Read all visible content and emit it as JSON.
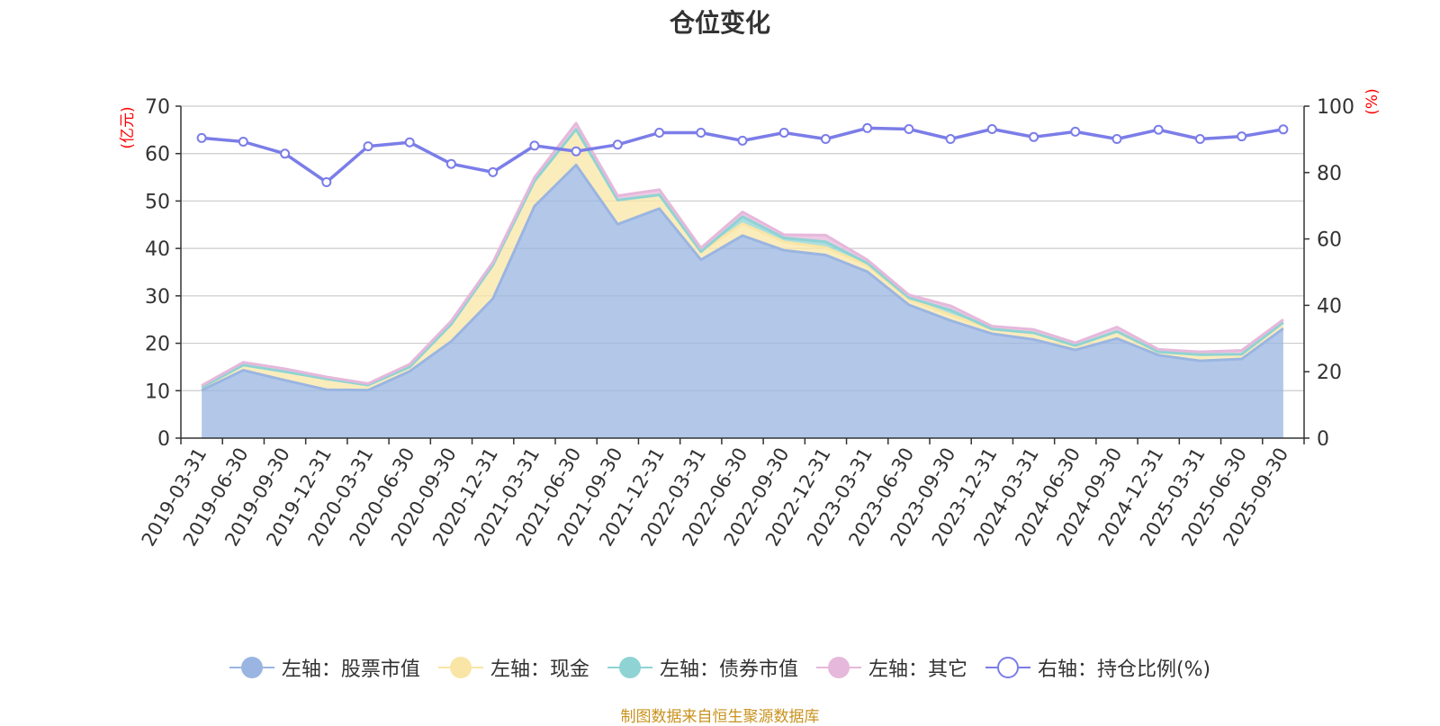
{
  "chart_data": {
    "type": "area",
    "title": "仓位变化",
    "left_axis_unit": "(亿元)",
    "right_axis_unit": "(%)",
    "left_ylim": [
      0,
      70
    ],
    "left_ticks": [
      0,
      10,
      20,
      30,
      40,
      50,
      60,
      70
    ],
    "right_ylim": [
      0,
      100
    ],
    "right_ticks": [
      0,
      20,
      40,
      60,
      80,
      100
    ],
    "grid": true,
    "stacked": true,
    "categories": [
      "2019-03-31",
      "2019-06-30",
      "2019-09-30",
      "2019-12-31",
      "2020-03-31",
      "2020-06-30",
      "2020-09-30",
      "2020-12-31",
      "2021-03-31",
      "2021-06-30",
      "2021-09-30",
      "2021-12-31",
      "2022-03-31",
      "2022-06-30",
      "2022-09-30",
      "2022-12-31",
      "2023-03-31",
      "2023-06-30",
      "2023-09-30",
      "2023-12-31",
      "2024-03-31",
      "2024-06-30",
      "2024-09-30",
      "2024-12-31",
      "2025-03-31",
      "2025-06-30",
      "2025-09-30"
    ],
    "series": [
      {
        "name": "左轴：股票市值",
        "axis": "left",
        "color": "#9ab5e1",
        "values": [
          10.1,
          14.3,
          12.2,
          10.2,
          10.1,
          14.1,
          20.4,
          29.4,
          48.9,
          57.6,
          45.1,
          48.4,
          37.6,
          42.7,
          39.6,
          38.6,
          35.1,
          28.1,
          24.8,
          22.0,
          20.8,
          18.6,
          21.0,
          17.5,
          16.3,
          16.7,
          23.1
        ]
      },
      {
        "name": "左轴：现金",
        "axis": "left",
        "color": "#f9e5a5",
        "values": [
          0.6,
          1.1,
          1.8,
          2.3,
          1.1,
          0.9,
          3.6,
          7.1,
          5.3,
          7.5,
          5.1,
          2.9,
          1.7,
          2.5,
          1.8,
          1.6,
          1.4,
          1.2,
          1.2,
          1.0,
          1.4,
          0.9,
          1.5,
          0.7,
          1.3,
          1.0,
          1.3
        ]
      },
      {
        "name": "左轴：债券市值",
        "axis": "left",
        "color": "#8fd3d4",
        "values": [
          0,
          0,
          0,
          0,
          0,
          0,
          0,
          0,
          0,
          0,
          0,
          0,
          0,
          1.5,
          0.8,
          1.2,
          0.4,
          0.3,
          1.0,
          0,
          0,
          0,
          0,
          0,
          0,
          0,
          0
        ]
      },
      {
        "name": "左轴：其它",
        "axis": "left",
        "color": "#e6b8db",
        "values": [
          0.4,
          0.6,
          0.6,
          0.4,
          0.3,
          0.6,
          0.7,
          0.6,
          0.8,
          1.3,
          0.9,
          1.1,
          0.8,
          1.0,
          0.7,
          1.4,
          0.7,
          0.6,
          0.9,
          0.6,
          0.7,
          0.6,
          0.9,
          0.5,
          0.6,
          0.8,
          0.6
        ]
      },
      {
        "name": "右轴：持仓比例(%)",
        "axis": "right",
        "type": "line",
        "color": "#7b7de8",
        "values": [
          90.4,
          89.3,
          85.7,
          77.1,
          87.9,
          89.1,
          82.6,
          80.1,
          88.1,
          86.4,
          88.4,
          92.0,
          92.0,
          89.6,
          92.0,
          90.1,
          93.4,
          93.1,
          90.1,
          93.1,
          90.7,
          92.3,
          90.1,
          92.9,
          90.1,
          90.9,
          93.0
        ]
      }
    ]
  },
  "legend": [
    {
      "label": "左轴：股票市值",
      "color": "#9ab5e1",
      "hollow": false
    },
    {
      "label": "左轴：现金",
      "color": "#f9e5a5",
      "hollow": false
    },
    {
      "label": "左轴：债券市值",
      "color": "#8fd3d4",
      "hollow": false
    },
    {
      "label": "左轴：其它",
      "color": "#e6b8db",
      "hollow": false
    },
    {
      "label": "右轴：持仓比例(%)",
      "color": "#7b7de8",
      "hollow": true
    }
  ],
  "source_note": "制图数据来自恒生聚源数据库"
}
